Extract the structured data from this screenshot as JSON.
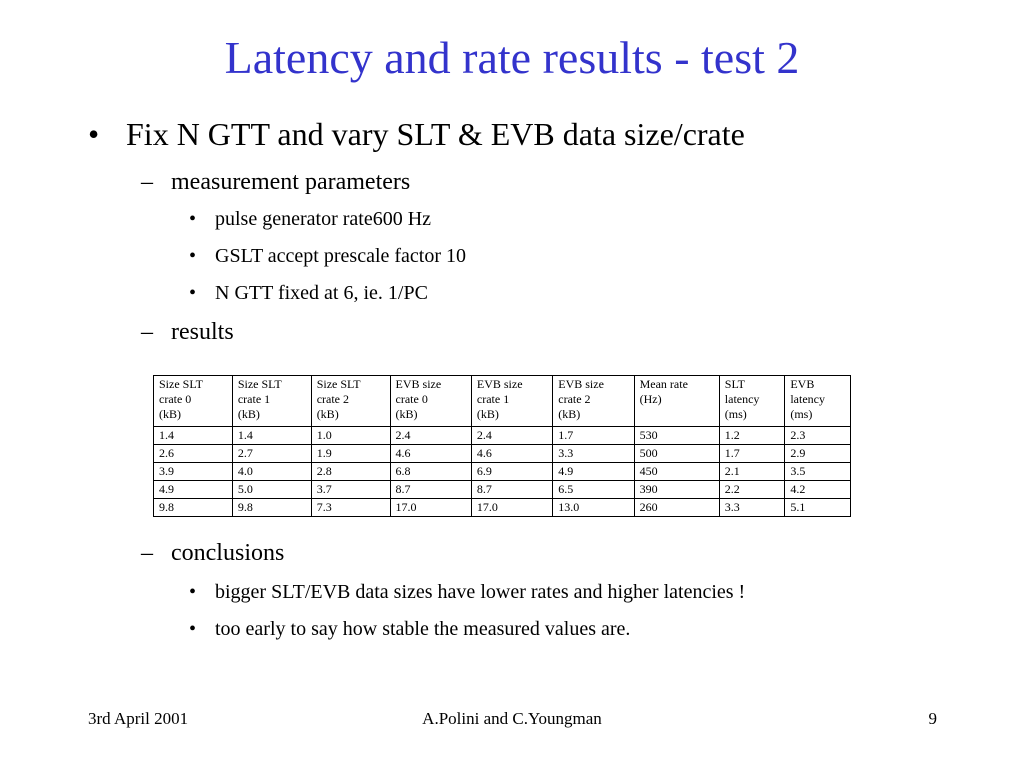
{
  "slide": {
    "title": "Latency and rate results - test 2",
    "bullet": "Fix N GTT and vary SLT & EVB data size/crate",
    "bullet_marker": "•",
    "dash_marker": "–",
    "sub1": {
      "label": "measurement parameters",
      "items": [
        "pulse generator rate600 Hz",
        "GSLT accept prescale factor 10",
        "N GTT fixed at 6, ie. 1/PC"
      ]
    },
    "sub2": {
      "label": "results"
    },
    "sub3": {
      "label": "conclusions",
      "items": [
        "bigger SLT/EVB data sizes have lower rates and higher latencies !",
        "too early to say how stable the measured values are."
      ]
    }
  },
  "table": {
    "headers": [
      [
        "Size SLT",
        "crate 0",
        "(kB)"
      ],
      [
        "Size SLT",
        "crate 1",
        "(kB)"
      ],
      [
        "Size SLT",
        "crate 2",
        "(kB)"
      ],
      [
        "EVB size",
        "crate 0",
        "(kB)"
      ],
      [
        "EVB size",
        "crate 1",
        "(kB)"
      ],
      [
        "EVB size",
        "crate 2",
        "(kB)"
      ],
      [
        "Mean rate",
        "(Hz)",
        ""
      ],
      [
        "SLT",
        "latency",
        "(ms)"
      ],
      [
        "EVB",
        "latency",
        "(ms)"
      ]
    ],
    "rows": [
      [
        "1.4",
        "1.4",
        "1.0",
        "2.4",
        "2.4",
        "1.7",
        "530",
        "1.2",
        "2.3"
      ],
      [
        "2.6",
        "2.7",
        "1.9",
        "4.6",
        "4.6",
        "3.3",
        "500",
        "1.7",
        "2.9"
      ],
      [
        "3.9",
        "4.0",
        "2.8",
        "6.8",
        "6.9",
        "4.9",
        "450",
        "2.1",
        "3.5"
      ],
      [
        "4.9",
        "5.0",
        "3.7",
        "8.7",
        "8.7",
        "6.5",
        "390",
        "2.2",
        "4.2"
      ],
      [
        "9.8",
        "9.8",
        "7.3",
        "17.0",
        "17.0",
        "13.0",
        "260",
        "3.3",
        "5.1"
      ]
    ]
  },
  "footer": {
    "date": "3rd April 2001",
    "authors": "A.Polini and C.Youngman",
    "page": "9"
  },
  "colors": {
    "title": "#3333cc",
    "text": "#000000",
    "background": "#ffffff"
  }
}
